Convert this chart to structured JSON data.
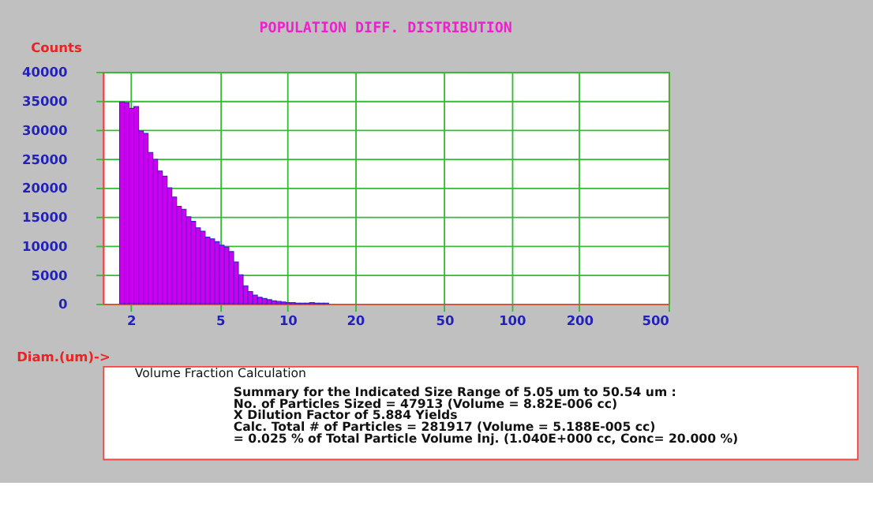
{
  "chart_data": {
    "type": "histogram",
    "title": "POPULATION DIFF. DISTRIBUTION",
    "xlabel": "Diam.(um)->",
    "ylabel": "Counts",
    "bins": [
      1.78,
      1.869,
      1.962,
      2.061,
      2.164,
      2.272,
      2.385,
      2.505,
      2.63,
      2.761,
      2.899,
      3.044,
      3.197,
      3.356,
      3.524,
      3.7,
      3.885,
      4.08,
      4.284,
      4.498,
      4.723,
      4.959,
      5.207,
      5.467,
      5.741,
      6.028,
      6.329,
      6.646,
      6.978,
      7.327,
      7.693,
      8.078,
      8.482,
      8.906,
      9.351,
      9.819,
      10.31,
      10.82,
      11.37,
      11.93,
      12.53,
      13.16,
      13.81,
      14.5,
      15.23
    ],
    "values": [
      34800,
      34700,
      33700,
      34000,
      29800,
      29400,
      26100,
      24900,
      22900,
      22000,
      20000,
      18400,
      16800,
      16300,
      15000,
      14200,
      13100,
      12500,
      11500,
      11200,
      10700,
      10100,
      9800,
      9000,
      7200,
      5000,
      3100,
      2100,
      1500,
      1100,
      900,
      700,
      500,
      400,
      300,
      200,
      200,
      100,
      100,
      100,
      200,
      100,
      100,
      100
    ],
    "color": "#cc00ee",
    "log": "x",
    "xlim": [
      1.5,
      500
    ],
    "xticks": [
      2,
      5,
      10,
      20,
      50,
      100,
      200,
      500
    ],
    "ylim": [
      0,
      40000
    ],
    "yticks": [
      0,
      5000,
      10000,
      15000,
      20000,
      25000,
      30000,
      35000,
      40000
    ],
    "grid": true,
    "annotations": [
      "Volume Fraction Calculation",
      "Summary for the Indicated Size Range of 5.05 um to 50.54 um :",
      "No. of Particles Sized = 47913 (Volume = 8.82E-006 cc)",
      "X Dilution Factor of 5.884 Yields",
      "Calc. Total # of Particles = 281917 (Volume = 5.188E-005 cc)",
      "= 0.025 % of Total Particle Volume Inj. (1.040E+000 cc, Conc= 20.000 %)"
    ]
  }
}
